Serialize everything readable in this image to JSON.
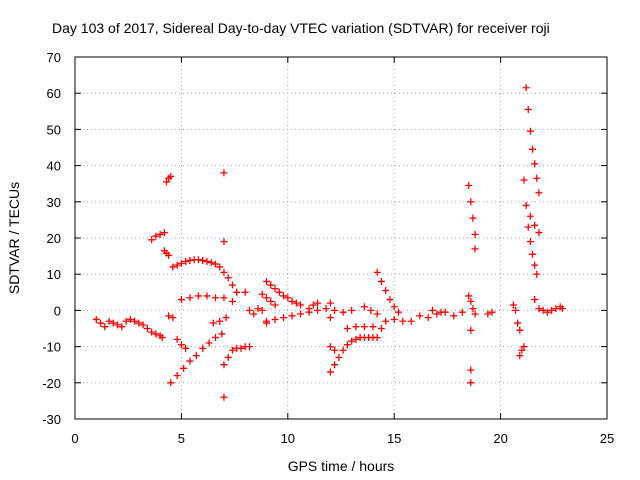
{
  "chart_data": {
    "type": "scatter",
    "title": "Day 103 of 2017, Sidereal Day-to-day VTEC variation (SDTVAR) for receiver roji",
    "xlabel": "GPS time / hours",
    "ylabel": "SDTVAR / TECUs",
    "xlim": [
      0,
      25
    ],
    "ylim": [
      -30,
      70
    ],
    "xticks": [
      "0",
      "5",
      "10",
      "15",
      "20",
      "25"
    ],
    "yticks": [
      "-30",
      "-20",
      "-10",
      "0",
      "10",
      "20",
      "30",
      "40",
      "50",
      "60",
      "70"
    ],
    "grid": true,
    "marker": "plus",
    "color": "#ff0000",
    "series": [
      {
        "name": "SDTVAR",
        "points": [
          [
            1.0,
            -2.5
          ],
          [
            1.2,
            -3.5
          ],
          [
            1.4,
            -4.5
          ],
          [
            1.6,
            -3.0
          ],
          [
            1.8,
            -3.5
          ],
          [
            2.0,
            -4.0
          ],
          [
            2.2,
            -4.5
          ],
          [
            2.4,
            -3.0
          ],
          [
            2.6,
            -2.5
          ],
          [
            2.8,
            -3.0
          ],
          [
            3.0,
            -3.5
          ],
          [
            3.2,
            -4.0
          ],
          [
            3.4,
            -5.0
          ],
          [
            3.6,
            -6.0
          ],
          [
            3.8,
            -6.5
          ],
          [
            4.0,
            -7.0
          ],
          [
            4.1,
            -7.5
          ],
          [
            3.6,
            19.5
          ],
          [
            3.8,
            20.5
          ],
          [
            4.0,
            21.0
          ],
          [
            4.2,
            21.5
          ],
          [
            4.2,
            16.5
          ],
          [
            4.3,
            15.8
          ],
          [
            4.4,
            15.2
          ],
          [
            4.3,
            35.5
          ],
          [
            4.4,
            36.5
          ],
          [
            4.5,
            37.0
          ],
          [
            4.4,
            -1.5
          ],
          [
            4.6,
            -2.0
          ],
          [
            4.5,
            -20.0
          ],
          [
            4.8,
            -18.0
          ],
          [
            5.1,
            -16.0
          ],
          [
            5.4,
            -14.0
          ],
          [
            5.7,
            -12.5
          ],
          [
            6.0,
            -10.5
          ],
          [
            6.3,
            -9.0
          ],
          [
            6.6,
            -7.5
          ],
          [
            6.9,
            -6.5
          ],
          [
            4.6,
            12.0
          ],
          [
            4.8,
            12.5
          ],
          [
            5.0,
            13.0
          ],
          [
            5.2,
            13.5
          ],
          [
            5.4,
            13.8
          ],
          [
            5.6,
            14.0
          ],
          [
            5.8,
            14.0
          ],
          [
            6.0,
            13.8
          ],
          [
            6.2,
            13.5
          ],
          [
            6.4,
            13.2
          ],
          [
            6.6,
            12.8
          ],
          [
            6.8,
            12.0
          ],
          [
            7.0,
            10.5
          ],
          [
            7.2,
            9.0
          ],
          [
            7.4,
            7.0
          ],
          [
            7.6,
            5.0
          ],
          [
            4.8,
            -8.0
          ],
          [
            5.0,
            -9.5
          ],
          [
            5.2,
            -10.5
          ],
          [
            5.0,
            3.0
          ],
          [
            5.4,
            3.5
          ],
          [
            5.8,
            4.0
          ],
          [
            6.2,
            4.0
          ],
          [
            6.6,
            3.5
          ],
          [
            7.0,
            3.5
          ],
          [
            7.4,
            2.5
          ],
          [
            6.5,
            -3.5
          ],
          [
            6.8,
            -3.0
          ],
          [
            7.1,
            -2.0
          ],
          [
            7.0,
            38.0
          ],
          [
            7.0,
            19.0
          ],
          [
            7.0,
            -24.0
          ],
          [
            7.0,
            -15.0
          ],
          [
            7.2,
            -13.0
          ],
          [
            7.4,
            -11.0
          ],
          [
            7.6,
            -10.5
          ],
          [
            7.8,
            -10.5
          ],
          [
            8.0,
            -10.0
          ],
          [
            8.2,
            -10.0
          ],
          [
            8.0,
            5.0
          ],
          [
            8.2,
            0.0
          ],
          [
            8.4,
            -1.0
          ],
          [
            8.6,
            0.5
          ],
          [
            8.8,
            0.0
          ],
          [
            9.0,
            -3.5
          ],
          [
            9.0,
            8.0
          ],
          [
            9.2,
            7.0
          ],
          [
            9.4,
            6.0
          ],
          [
            9.6,
            5.0
          ],
          [
            9.8,
            4.0
          ],
          [
            10.0,
            3.5
          ],
          [
            10.2,
            2.5
          ],
          [
            10.4,
            2.0
          ],
          [
            10.6,
            1.5
          ],
          [
            8.8,
            4.5
          ],
          [
            9.0,
            3.5
          ],
          [
            9.2,
            2.5
          ],
          [
            9.4,
            1.5
          ],
          [
            9.0,
            -3.0
          ],
          [
            9.4,
            -2.5
          ],
          [
            9.8,
            -2.0
          ],
          [
            10.2,
            -1.5
          ],
          [
            10.6,
            -1.0
          ],
          [
            11.0,
            -0.5
          ],
          [
            11.4,
            0.0
          ],
          [
            11.8,
            0.5
          ],
          [
            12.2,
            0.0
          ],
          [
            12.6,
            -0.5
          ],
          [
            13.0,
            0.0
          ],
          [
            11.0,
            0.5
          ],
          [
            11.2,
            1.5
          ],
          [
            11.4,
            2.0
          ],
          [
            12.0,
            -17.0
          ],
          [
            12.2,
            -15.0
          ],
          [
            12.4,
            -13.0
          ],
          [
            12.6,
            -11.0
          ],
          [
            12.8,
            -9.5
          ],
          [
            13.0,
            -8.5
          ],
          [
            13.2,
            -8.0
          ],
          [
            13.4,
            -7.5
          ],
          [
            13.6,
            -7.5
          ],
          [
            13.8,
            -7.5
          ],
          [
            14.0,
            -7.5
          ],
          [
            14.2,
            -7.5
          ],
          [
            12.0,
            -10.0
          ],
          [
            12.2,
            -11.0
          ],
          [
            12.8,
            -5.0
          ],
          [
            13.2,
            -4.5
          ],
          [
            13.6,
            -4.5
          ],
          [
            14.0,
            -4.5
          ],
          [
            14.4,
            -5.0
          ],
          [
            12.0,
            2.0
          ],
          [
            12.0,
            -2.0
          ],
          [
            13.6,
            1.0
          ],
          [
            13.9,
            0.0
          ],
          [
            14.2,
            -1.0
          ],
          [
            14.2,
            10.5
          ],
          [
            14.4,
            8.0
          ],
          [
            14.6,
            5.5
          ],
          [
            14.8,
            3.0
          ],
          [
            15.0,
            1.0
          ],
          [
            15.2,
            -0.5
          ],
          [
            14.6,
            -3.0
          ],
          [
            15.0,
            -2.5
          ],
          [
            15.4,
            -3.0
          ],
          [
            15.8,
            -3.0
          ],
          [
            16.2,
            -1.5
          ],
          [
            16.6,
            -2.0
          ],
          [
            17.0,
            -1.0
          ],
          [
            17.4,
            -0.5
          ],
          [
            17.8,
            -1.5
          ],
          [
            18.2,
            -0.5
          ],
          [
            16.8,
            0.0
          ],
          [
            17.2,
            -0.5
          ],
          [
            18.5,
            34.5
          ],
          [
            18.6,
            30.0
          ],
          [
            18.7,
            25.5
          ],
          [
            18.8,
            21.0
          ],
          [
            18.8,
            17.0
          ],
          [
            18.6,
            -20.0
          ],
          [
            18.6,
            -16.5
          ],
          [
            18.5,
            4.0
          ],
          [
            18.6,
            2.5
          ],
          [
            18.7,
            0.5
          ],
          [
            18.8,
            -1.0
          ],
          [
            18.6,
            -5.5
          ],
          [
            19.4,
            -1.0
          ],
          [
            19.6,
            -0.5
          ],
          [
            20.6,
            1.5
          ],
          [
            20.7,
            0.0
          ],
          [
            20.8,
            -3.5
          ],
          [
            20.9,
            -5.5
          ],
          [
            20.9,
            -12.5
          ],
          [
            21.0,
            -11.0
          ],
          [
            21.1,
            -10.0
          ],
          [
            21.2,
            61.5
          ],
          [
            21.3,
            55.5
          ],
          [
            21.4,
            49.5
          ],
          [
            21.5,
            44.5
          ],
          [
            21.6,
            40.5
          ],
          [
            21.7,
            36.5
          ],
          [
            21.8,
            32.5
          ],
          [
            21.1,
            36.0
          ],
          [
            21.2,
            29.0
          ],
          [
            21.3,
            23.0
          ],
          [
            21.4,
            19.0
          ],
          [
            21.5,
            15.5
          ],
          [
            21.6,
            12.5
          ],
          [
            21.7,
            10.0
          ],
          [
            21.4,
            26.0
          ],
          [
            21.6,
            23.5
          ],
          [
            21.8,
            21.5
          ],
          [
            21.6,
            3.0
          ],
          [
            21.8,
            0.5
          ],
          [
            22.0,
            0.0
          ],
          [
            22.2,
            -0.5
          ],
          [
            22.4,
            0.0
          ],
          [
            22.6,
            0.5
          ],
          [
            22.8,
            1.0
          ],
          [
            22.9,
            0.5
          ]
        ]
      }
    ]
  }
}
